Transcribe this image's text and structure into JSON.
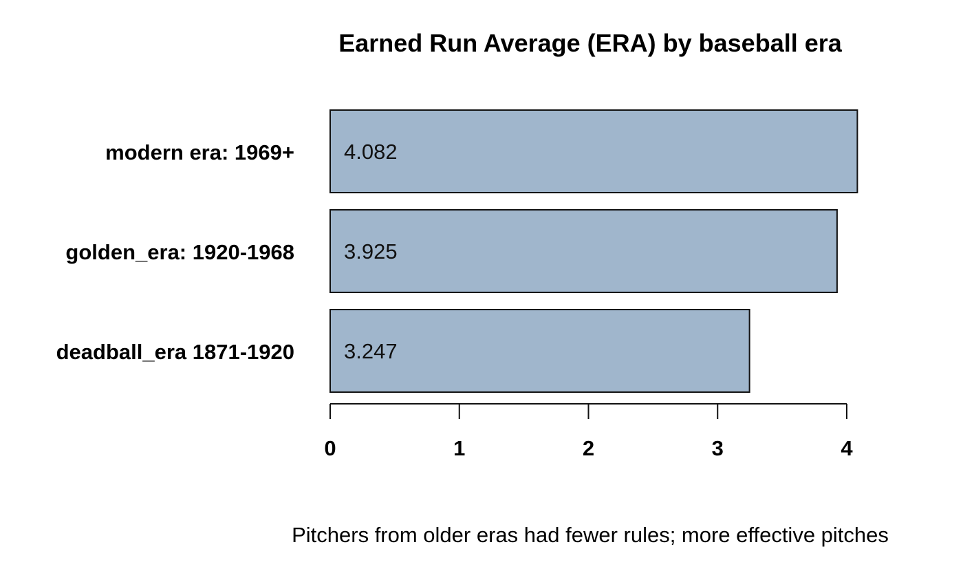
{
  "chart_data": {
    "type": "bar",
    "orientation": "horizontal",
    "title": "Earned Run Average (ERA) by baseball era",
    "subtitle": "Pitchers from older eras had fewer rules; more effective pitches",
    "categories": [
      "modern era: 1969+",
      "golden_era: 1920-1968",
      "deadball_era 1871-1920"
    ],
    "values": [
      4.082,
      3.925,
      3.247
    ],
    "value_labels": [
      "4.082",
      "3.925",
      "3.247"
    ],
    "xlabel": "",
    "ylabel": "",
    "xlim": [
      0,
      4
    ],
    "x_ticks": [
      0,
      1,
      2,
      3,
      4
    ],
    "x_tick_labels": [
      "0",
      "1",
      "2",
      "3",
      "4"
    ],
    "grid": false,
    "legend": "none",
    "colors": {
      "bar_fill": "#a0b6cc",
      "bar_stroke": "#111111"
    }
  }
}
